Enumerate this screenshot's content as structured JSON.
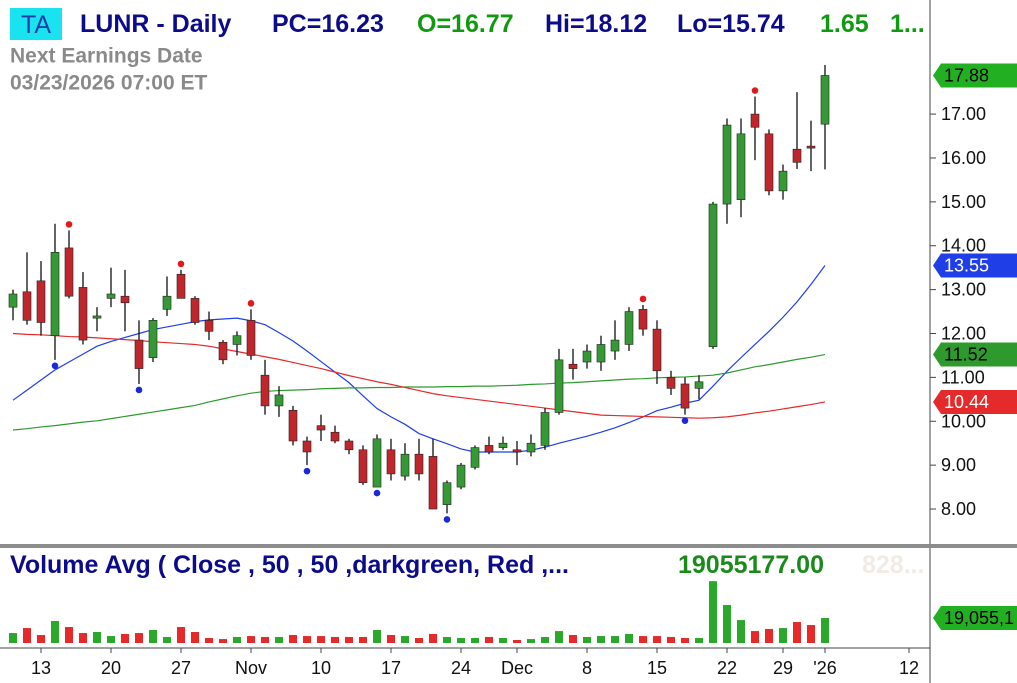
{
  "chart_data": [
    {
      "type": "candlestick",
      "badge": "TA",
      "title": "LUNR - Daily",
      "quote": [
        {
          "text": "PC=16.23",
          "color": "#0b0b8c"
        },
        {
          "text": "O=16.77",
          "color": "#119a11"
        },
        {
          "text": "Hi=18.12",
          "color": "#0b0b8c"
        },
        {
          "text": "Lo=15.74",
          "color": "#0b0b8c"
        },
        {
          "text": "1.65",
          "color": "#119a11"
        },
        {
          "text": "1...",
          "color": "#119a11"
        }
      ],
      "annotations": [
        "Next Earnings Date",
        "03/23/2026 07:00 ET"
      ],
      "categories": [
        null,
        null,
        "13",
        null,
        null,
        null,
        null,
        "20",
        null,
        null,
        null,
        null,
        "27",
        null,
        null,
        null,
        null,
        "Nov",
        null,
        null,
        null,
        null,
        "10",
        null,
        null,
        null,
        null,
        "17",
        null,
        null,
        null,
        null,
        "24",
        null,
        null,
        null,
        "Dec",
        null,
        null,
        null,
        null,
        "8",
        null,
        null,
        null,
        null,
        "15",
        null,
        null,
        null,
        null,
        "22",
        null,
        null,
        null,
        "29",
        null,
        null,
        "'26",
        null,
        null,
        null,
        null,
        null,
        "12",
        null
      ],
      "open": [
        12.6,
        12.95,
        13.2,
        11.95,
        13.95,
        13.05,
        12.35,
        12.8,
        12.85,
        11.85,
        11.45,
        12.55,
        13.35,
        12.8,
        12.3,
        11.8,
        11.75,
        12.3,
        11.05,
        10.35,
        10.25,
        9.55,
        9.9,
        9.75,
        9.55,
        9.35,
        8.5,
        9.35,
        8.75,
        9.25,
        9.2,
        8.1,
        8.5,
        8.95,
        9.45,
        9.4,
        9.35,
        9.3,
        9.45,
        10.2,
        11.3,
        11.35,
        11.35,
        11.6,
        11.75,
        12.55,
        12.1,
        11.0,
        10.85,
        10.75,
        11.7,
        14.95,
        15.05,
        17.0,
        16.55,
        15.25,
        16.2,
        16.27,
        16.77,
        null,
        null,
        null,
        null,
        null,
        null,
        null
      ],
      "high": [
        13.0,
        13.85,
        13.65,
        14.5,
        14.35,
        13.4,
        12.6,
        13.5,
        13.45,
        12.3,
        12.35,
        13.3,
        13.45,
        12.85,
        12.5,
        11.85,
        12.05,
        12.55,
        11.4,
        10.8,
        10.35,
        9.65,
        10.15,
        9.9,
        9.6,
        9.45,
        9.7,
        9.6,
        9.5,
        9.6,
        9.6,
        8.65,
        9.05,
        9.45,
        9.65,
        9.65,
        9.55,
        9.7,
        10.3,
        11.65,
        11.65,
        11.75,
        11.95,
        12.3,
        12.6,
        12.65,
        12.3,
        11.15,
        11.0,
        11.05,
        15.0,
        16.9,
        16.9,
        17.4,
        16.65,
        15.85,
        17.5,
        16.85,
        18.12,
        null,
        null,
        null,
        null,
        null,
        null,
        null
      ],
      "low": [
        12.3,
        12.2,
        11.95,
        11.4,
        12.8,
        11.75,
        12.05,
        12.6,
        12.05,
        10.85,
        11.35,
        12.4,
        12.8,
        12.2,
        11.85,
        11.3,
        11.5,
        11.4,
        10.15,
        10.1,
        9.45,
        9.0,
        9.55,
        9.5,
        9.25,
        8.55,
        8.5,
        8.65,
        8.65,
        8.65,
        8.0,
        7.9,
        8.45,
        8.9,
        9.25,
        9.35,
        9.0,
        9.2,
        9.35,
        10.15,
        10.95,
        11.2,
        11.15,
        11.4,
        11.6,
        11.95,
        10.85,
        10.6,
        10.15,
        10.5,
        11.65,
        14.5,
        14.65,
        15.95,
        15.15,
        15.05,
        15.75,
        15.7,
        15.74,
        null,
        null,
        null,
        null,
        null,
        null,
        null
      ],
      "close": [
        12.9,
        12.3,
        12.25,
        13.85,
        12.85,
        11.85,
        12.4,
        12.9,
        12.7,
        11.2,
        12.3,
        12.85,
        12.8,
        12.25,
        12.05,
        11.4,
        11.95,
        11.5,
        10.35,
        10.6,
        9.55,
        9.3,
        9.8,
        9.55,
        9.35,
        8.6,
        9.6,
        8.8,
        9.25,
        8.8,
        8.0,
        8.6,
        9.0,
        9.4,
        9.3,
        9.5,
        9.3,
        9.5,
        10.2,
        11.4,
        11.2,
        11.6,
        11.75,
        11.85,
        12.5,
        12.1,
        11.15,
        10.75,
        10.3,
        10.9,
        14.95,
        16.75,
        16.55,
        16.7,
        15.25,
        15.7,
        15.9,
        16.23,
        17.88,
        null,
        null,
        null,
        null,
        null,
        null,
        null
      ],
      "up_color": "#359a35",
      "down_color": "#c0272d",
      "close_tag_color": "#22b022",
      "close_tag_text_color": "#000000",
      "high_marks": [
        4,
        12,
        17,
        45,
        53
      ],
      "low_marks": [
        3,
        9,
        21,
        26,
        31,
        48
      ],
      "high_mark_color": "#e01a1a",
      "low_mark_color": "#1a28d8",
      "series": [
        {
          "color": "#1f3ee8",
          "tag_text_color": "#ffffff",
          "values": [
            10.48,
            10.71,
            10.94,
            11.17,
            11.35,
            11.53,
            11.71,
            11.82,
            11.91,
            12.0,
            12.09,
            12.15,
            12.21,
            12.27,
            12.31,
            12.33,
            12.35,
            12.29,
            12.2,
            12.02,
            11.83,
            11.6,
            11.36,
            11.12,
            10.88,
            10.58,
            10.29,
            10.1,
            9.93,
            9.72,
            9.6,
            9.49,
            9.37,
            9.3,
            9.3,
            9.3,
            9.3,
            9.34,
            9.41,
            9.5,
            9.58,
            9.66,
            9.75,
            9.85,
            9.97,
            10.1,
            10.24,
            10.32,
            10.41,
            10.48,
            10.8,
            11.14,
            11.45,
            11.75,
            12.05,
            12.37,
            12.72,
            13.12,
            13.55,
            null,
            null,
            null,
            null,
            null,
            null,
            null
          ]
        },
        {
          "color": "#2e9a2e",
          "tag_text_color": "#000000",
          "values": [
            9.8,
            9.83,
            9.87,
            9.9,
            9.94,
            9.98,
            10.01,
            10.06,
            10.11,
            10.16,
            10.21,
            10.26,
            10.31,
            10.36,
            10.44,
            10.51,
            10.58,
            10.64,
            10.68,
            10.7,
            10.71,
            10.72,
            10.74,
            10.75,
            10.76,
            10.76,
            10.77,
            10.77,
            10.78,
            10.78,
            10.78,
            10.79,
            10.79,
            10.8,
            10.8,
            10.81,
            10.82,
            10.84,
            10.85,
            10.87,
            10.88,
            10.9,
            10.92,
            10.94,
            10.96,
            10.97,
            10.99,
            11.0,
            11.01,
            11.03,
            11.05,
            11.1,
            11.17,
            11.24,
            11.29,
            11.35,
            11.41,
            11.46,
            11.52,
            null,
            null,
            null,
            null,
            null,
            null,
            null
          ]
        },
        {
          "color": "#e42a2a",
          "tag_text_color": "#ffffff",
          "values": [
            12.0,
            11.98,
            11.97,
            11.95,
            11.93,
            11.92,
            11.9,
            11.88,
            11.86,
            11.84,
            11.81,
            11.79,
            11.77,
            11.75,
            11.71,
            11.65,
            11.59,
            11.53,
            11.47,
            11.41,
            11.34,
            11.27,
            11.2,
            11.12,
            11.04,
            10.97,
            10.9,
            10.84,
            10.77,
            10.7,
            10.63,
            10.58,
            10.54,
            10.5,
            10.46,
            10.42,
            10.38,
            10.34,
            10.3,
            10.26,
            10.22,
            10.18,
            10.14,
            10.13,
            10.12,
            10.11,
            10.1,
            10.09,
            10.08,
            10.07,
            10.08,
            10.1,
            10.14,
            10.19,
            10.23,
            10.28,
            10.33,
            10.38,
            10.44,
            null,
            null,
            null,
            null,
            null,
            null,
            null
          ]
        }
      ],
      "ylim": [
        7.18,
        19.6
      ],
      "yticks": [
        {
          "value": 8,
          "label": "8.00"
        },
        {
          "value": 9,
          "label": "9.00"
        },
        {
          "value": 10,
          "label": "10.00"
        },
        {
          "value": 11,
          "label": "11.00"
        },
        {
          "value": 12,
          "label": "12.00"
        },
        {
          "value": 13,
          "label": "13.00"
        },
        {
          "value": 14,
          "label": "14.00"
        },
        {
          "value": 15,
          "label": "15.00"
        },
        {
          "value": 16,
          "label": "16.00"
        },
        {
          "value": 17,
          "label": "17.00"
        }
      ]
    },
    {
      "type": "bar",
      "title": "Volume Avg ( Close , 50 , 50 ,darkgreen, Red ,...",
      "readout": "19055177.00",
      "readout_faded": "828...",
      "last_label": "19,055,1",
      "up_color": "#2aa82a",
      "down_color": "#e62a2a",
      "tag_color": "#22b022",
      "values": [
        7600000,
        11400000,
        6100000,
        16800000,
        12200000,
        7600000,
        8400000,
        5300000,
        6900000,
        7600000,
        9900000,
        4600000,
        12200000,
        8400000,
        3800000,
        3000000,
        4600000,
        5300000,
        4600000,
        4600000,
        6100000,
        5300000,
        5300000,
        4600000,
        4600000,
        4600000,
        9900000,
        6100000,
        5300000,
        3800000,
        6900000,
        4600000,
        3800000,
        3800000,
        4600000,
        3800000,
        2300000,
        3000000,
        4600000,
        9100000,
        6100000,
        4600000,
        5300000,
        5300000,
        6900000,
        5300000,
        5300000,
        4600000,
        3800000,
        3800000,
        47200000,
        29000000,
        17500000,
        9100000,
        10700000,
        11400000,
        16000000,
        13700000,
        19055177,
        null,
        null,
        null,
        null,
        null,
        null,
        null
      ],
      "ylim": [
        0,
        72500000
      ]
    }
  ]
}
